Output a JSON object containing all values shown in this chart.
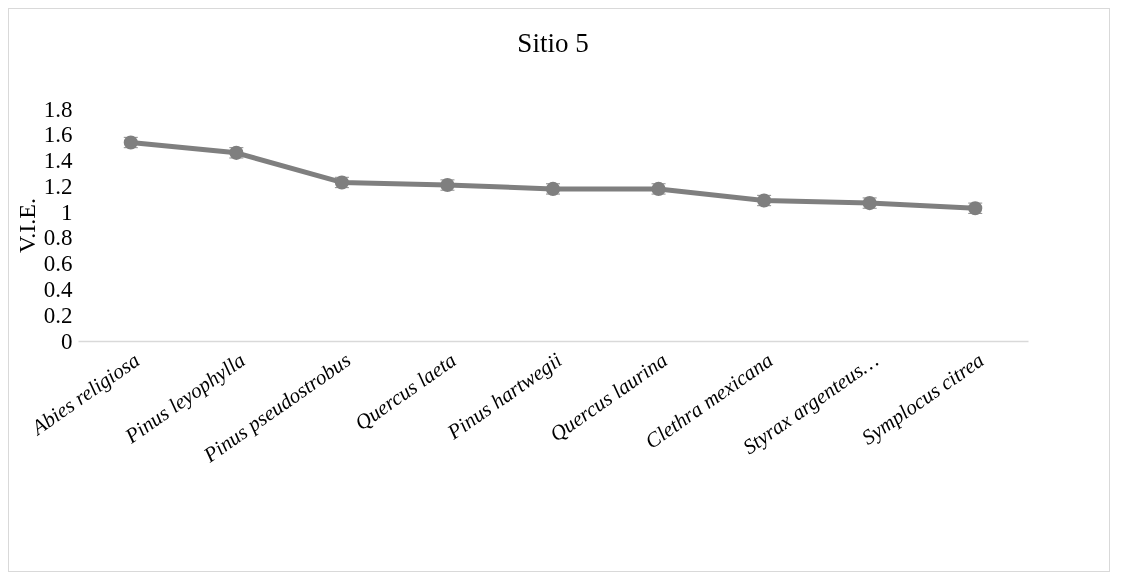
{
  "chart_data": {
    "type": "line",
    "title": "Sitio 5",
    "ylabel": "V.I.E.",
    "categories": [
      "Abies religiosa",
      "Pinus leyophylla",
      "Pinus pseudostrobus",
      "Quercus laeta",
      "Pinus hartwegii",
      "Quercus laurina",
      "Clethra mexicana",
      "Styrax argenteus…",
      "Symplocus citrea"
    ],
    "series": [
      {
        "color": "#7f7f7f",
        "values": [
          1.54,
          1.46,
          1.23,
          1.21,
          1.18,
          1.18,
          1.09,
          1.07,
          1.03
        ],
        "errors": [
          0.04,
          0.04,
          0.04,
          0.04,
          0.04,
          0.04,
          0.04,
          0.04,
          0.04
        ]
      }
    ],
    "ylim": [
      0,
      1.8
    ],
    "yticks": [
      0,
      0.2,
      0.4,
      0.6,
      0.8,
      1,
      1.2,
      1.4,
      1.6,
      1.8
    ],
    "grid": false,
    "legend": false,
    "marker": "circle",
    "line_style": "solid"
  }
}
